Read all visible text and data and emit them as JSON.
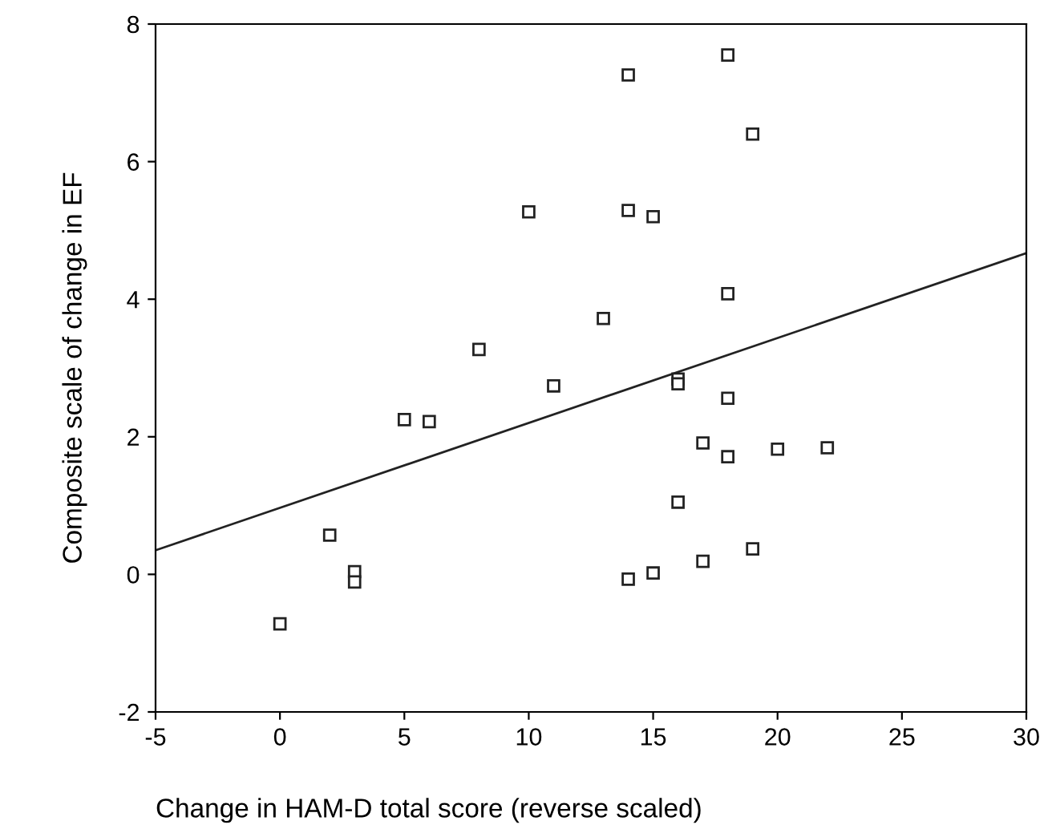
{
  "chart_data": {
    "type": "scatter",
    "xlabel": "Change in HAM-D total score (reverse scaled)",
    "ylabel": "Composite scale of change in EF",
    "xlim": [
      -5,
      30
    ],
    "xticks": [
      -5,
      0,
      5,
      10,
      15,
      20,
      25,
      30
    ],
    "ylim": [
      -2,
      8
    ],
    "yticks": [
      -2,
      0,
      2,
      4,
      6,
      8
    ],
    "grid": false,
    "legend": false,
    "series": [
      {
        "color": "#222222",
        "marker": "square",
        "x": [
          0,
          2,
          3,
          3,
          5,
          6,
          8,
          10,
          11,
          13,
          14,
          14,
          14,
          15,
          15,
          16,
          16,
          16,
          17,
          17,
          18,
          18,
          18,
          18,
          19,
          19,
          20,
          22
        ],
        "values": [
          -0.72,
          0.57,
          0.04,
          -0.11,
          2.25,
          2.22,
          3.27,
          5.27,
          2.74,
          3.72,
          7.26,
          5.29,
          -0.07,
          5.2,
          0.02,
          2.84,
          2.77,
          1.05,
          1.91,
          0.19,
          7.55,
          4.08,
          2.56,
          1.71,
          6.4,
          0.37,
          1.82,
          1.84
        ]
      },
      {
        "type": "line",
        "color": "#222222",
        "line_style": "solid",
        "x": [
          -5,
          30
        ],
        "values": [
          0.35,
          4.67
        ]
      }
    ]
  }
}
